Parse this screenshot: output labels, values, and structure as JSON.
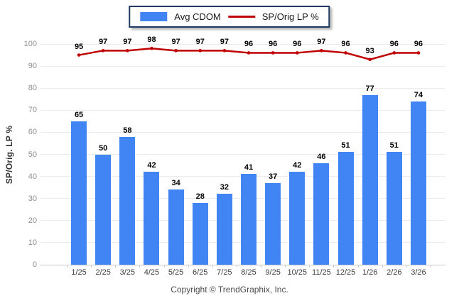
{
  "legend": {
    "bar_label": "Avg CDOM",
    "line_label": "SP/Orig LP %"
  },
  "ylabel": "SP/Orig. LP %",
  "footer": "Copyright © TrendGraphix, Inc.",
  "colors": {
    "bar": "#4184f3",
    "line": "#c00000",
    "legend_border": "#1f3a60",
    "grid": "#ebebeb",
    "axis_line": "#c9c9c9",
    "y_tick_text": "#8e8e8e",
    "x_tick_text": "#3c3c3c",
    "value_label": "#000000"
  },
  "chart_data": {
    "type": "bar",
    "categories": [
      "1/25",
      "2/25",
      "3/25",
      "4/25",
      "5/25",
      "6/25",
      "7/25",
      "8/25",
      "9/25",
      "10/25",
      "11/25",
      "12/25",
      "1/26",
      "2/26",
      "3/26"
    ],
    "series": [
      {
        "name": "Avg CDOM",
        "type": "bar",
        "values": [
          65,
          50,
          58,
          42,
          34,
          28,
          32,
          41,
          37,
          42,
          46,
          51,
          77,
          51,
          74
        ]
      },
      {
        "name": "SP/Orig LP %",
        "type": "line",
        "values": [
          95,
          97,
          97,
          98,
          97,
          97,
          97,
          96,
          96,
          96,
          97,
          96,
          93,
          96,
          96
        ]
      }
    ],
    "title": "",
    "xlabel": "",
    "ylabel": "SP/Orig. LP %",
    "ylim": [
      0,
      100
    ],
    "yticks": [
      0,
      10,
      20,
      30,
      40,
      50,
      60,
      70,
      80,
      90,
      100
    ],
    "grid": true,
    "legend_position": "top-center"
  }
}
